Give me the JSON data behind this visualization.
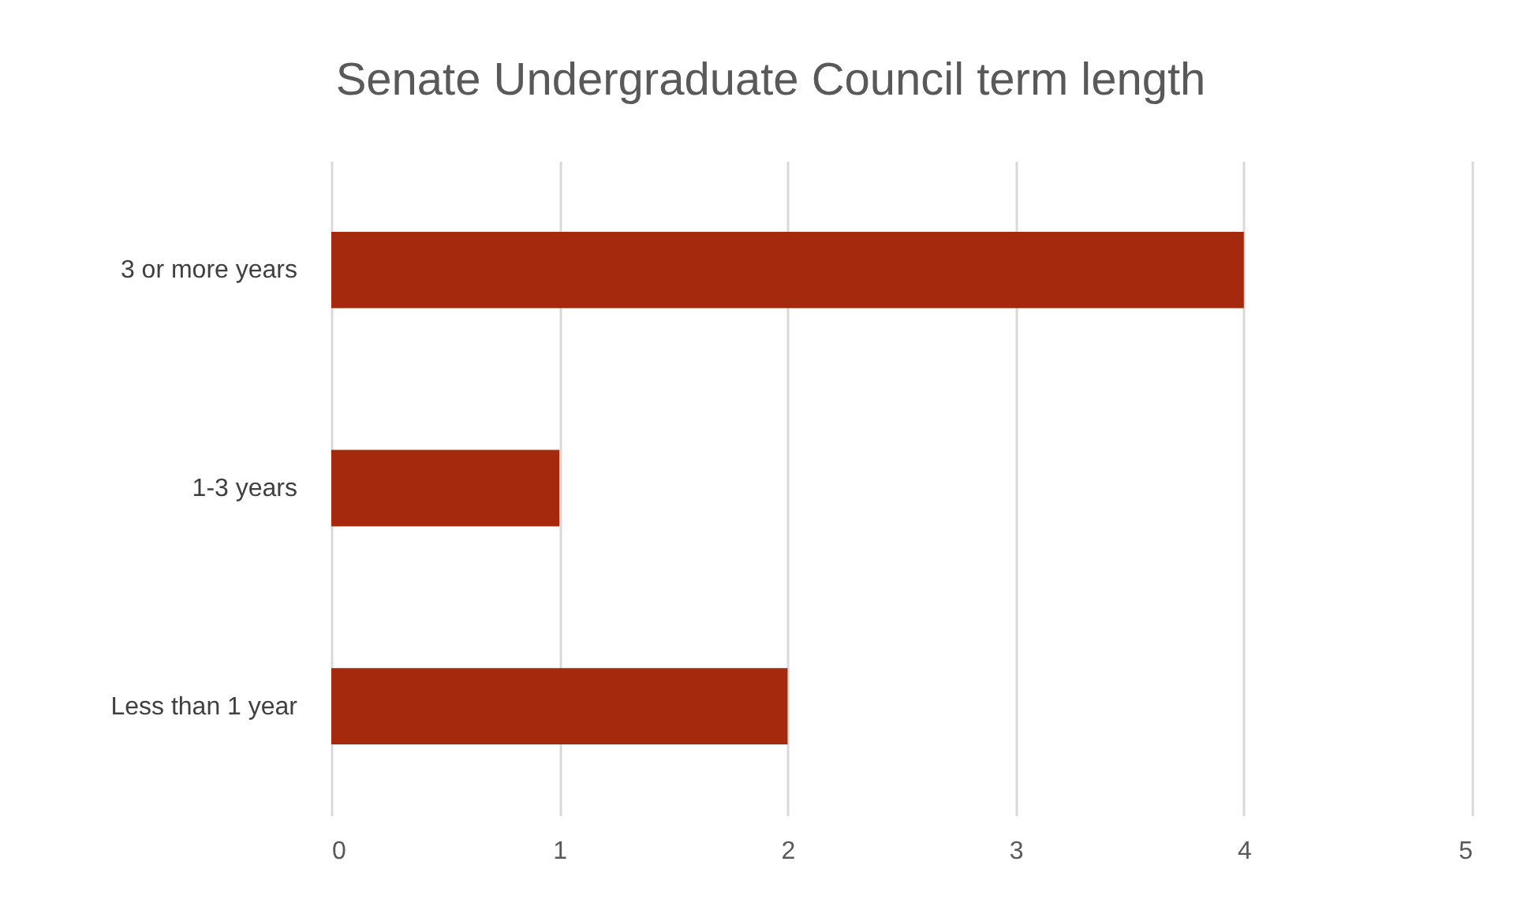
{
  "chart_data": {
    "type": "bar",
    "orientation": "horizontal",
    "title": "Senate Undergraduate Council term length",
    "categories": [
      "3 or more years",
      "1-3 years",
      "Less than 1 year"
    ],
    "values": [
      4,
      1,
      2
    ],
    "color": "#a52a0d",
    "xlim": [
      0,
      5
    ],
    "xticks": [
      0,
      1,
      2,
      3,
      4,
      5
    ],
    "grid": "x"
  }
}
